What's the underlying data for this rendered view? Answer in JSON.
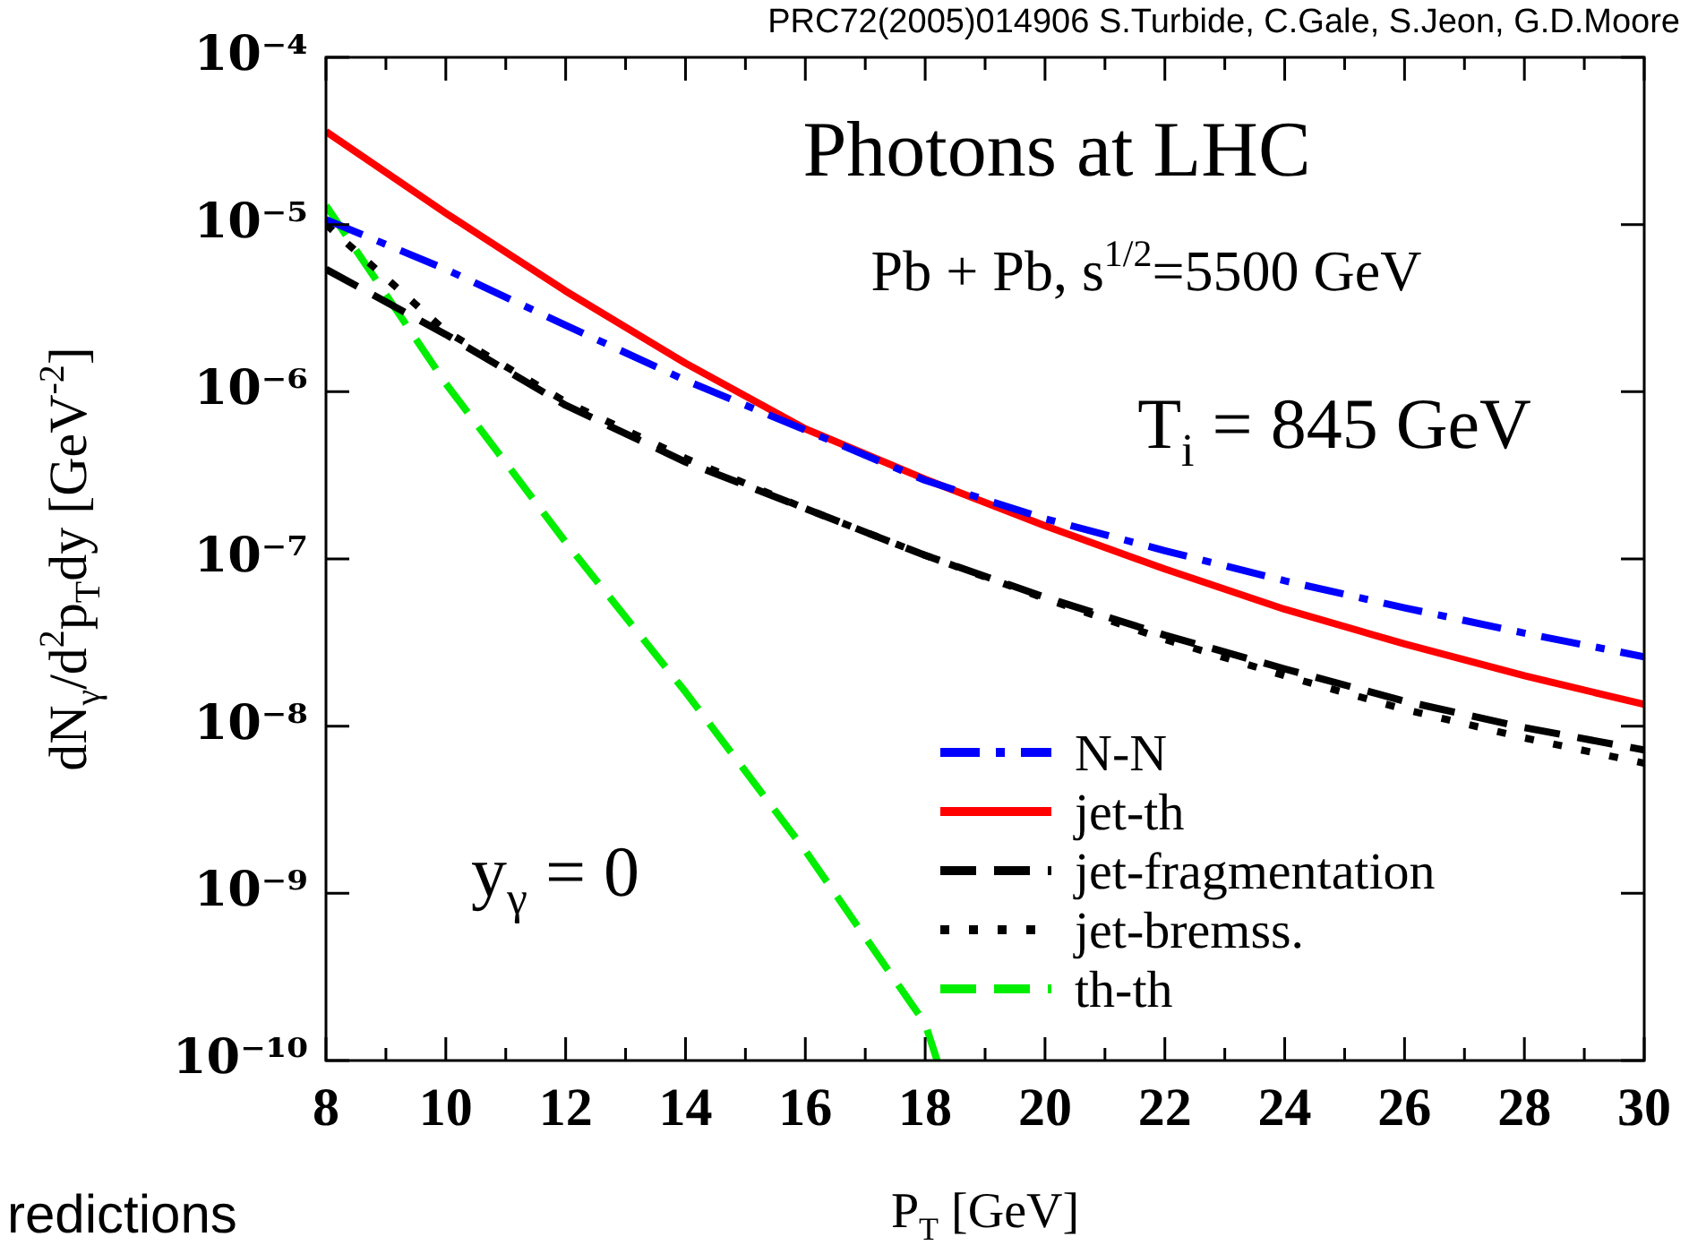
{
  "chart_data": {
    "type": "line",
    "xlabel": "P$_{T}$ [GeV]",
    "ylabel": "dN$_{γ}$/d$^{2}$p$_{T}$dy [GeV$^{-2}$]",
    "annotations": [
      "Photons at LHC",
      "Pb + Pb, s$^{1/2}$=5500 GeV",
      "T$_{i}$ = 845 GeV",
      "y$_{γ}$ = 0",
      "PRC72(2005)014906 S.Turbide, C.Gale, S.Jeon, G.D.Moore",
      "redictions"
    ],
    "x": [
      8,
      10,
      12,
      14,
      16,
      18,
      20,
      22,
      24,
      26,
      28,
      30
    ],
    "series": [
      {
        "name": "N-N",
        "color": "#0000ff",
        "line_style": "dashdot",
        "values": [
          1.07e-05,
          5.4e-06,
          2.5e-06,
          1.17e-06,
          5.9e-07,
          2.95e-07,
          1.74e-07,
          1.12e-07,
          7.4e-08,
          5.1e-08,
          3.6e-08,
          2.6e-08
        ]
      },
      {
        "name": "jet-th",
        "color": "#ff0000",
        "line_style": "solid",
        "values": [
          3.6e-05,
          1.17e-05,
          4e-06,
          1.48e-06,
          6e-07,
          3e-07,
          1.58e-07,
          8.7e-08,
          5e-08,
          3.1e-08,
          2e-08,
          1.35e-08
        ]
      },
      {
        "name": "jet-fragmentation",
        "color": "#000000",
        "line_style": "dashed",
        "values": [
          5.4e-06,
          2.2e-06,
          8.3e-07,
          3.8e-07,
          2e-07,
          1.05e-07,
          5.9e-08,
          3.5e-08,
          2.2e-08,
          1.41e-08,
          9.8e-09,
          7.2e-09
        ]
      },
      {
        "name": "jet-bremss.",
        "color": "#000000",
        "line_style": "dotted",
        "values": [
          1e-05,
          2.3e-06,
          8.7e-07,
          4e-07,
          2e-07,
          1.05e-07,
          5.8e-08,
          3.3e-08,
          2e-08,
          1.26e-08,
          8.5e-09,
          6e-09
        ]
      },
      {
        "name": "th-th",
        "color": "#00ee00",
        "line_style": "dashed",
        "x": [
          8,
          10,
          12,
          14,
          16,
          18,
          18.2
        ],
        "values": [
          1.3e-05,
          1.12e-06,
          1.26e-07,
          1.6e-08,
          1.8e-09,
          1.66e-10,
          1e-10
        ]
      }
    ],
    "log": "y",
    "xlim": [
      8,
      30
    ],
    "ylim": [
      1e-10,
      0.0001
    ],
    "xticks": [
      8,
      {
        "value": 9,
        "label": null
      },
      10,
      {
        "value": 11,
        "label": null
      },
      12,
      {
        "value": 13,
        "label": null
      },
      14,
      {
        "value": 15,
        "label": null
      },
      16,
      {
        "value": 17,
        "label": null
      },
      18,
      {
        "value": 19,
        "label": null
      },
      20,
      {
        "value": 21,
        "label": null
      },
      22,
      {
        "value": 23,
        "label": null
      },
      24,
      {
        "value": 25,
        "label": null
      },
      26,
      {
        "value": 27,
        "label": null
      },
      28,
      {
        "value": 29,
        "label": null
      },
      30
    ],
    "yticks": [
      {
        "value": 1e-10,
        "label": "10⁻¹⁰"
      },
      {
        "value": 1e-09,
        "label": "10⁻⁹"
      },
      {
        "value": 1e-08,
        "label": "10⁻⁸"
      },
      {
        "value": 1e-07,
        "label": "10⁻⁷"
      },
      {
        "value": 1e-06,
        "label": "10⁻⁶"
      },
      {
        "value": 1e-05,
        "label": "10⁻⁵"
      },
      {
        "value": 0.0001,
        "label": "10⁻⁴"
      }
    ],
    "grid": false,
    "legend": "bottom right"
  }
}
